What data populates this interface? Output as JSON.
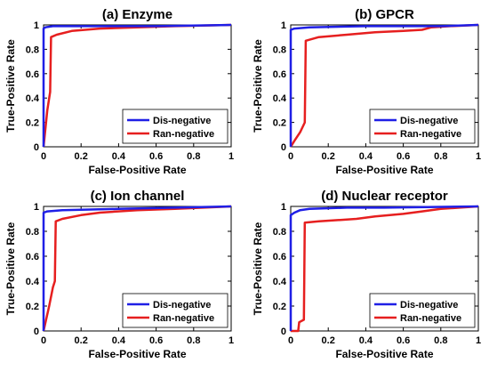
{
  "chart_data": [
    {
      "type": "line",
      "title": "(a) Enzyme",
      "xlabel": "False-Positive Rate",
      "ylabel": "True-Positive Rate",
      "xlim": [
        0,
        1
      ],
      "ylim": [
        0,
        1
      ],
      "xticks": [
        "0",
        "0.2",
        "0.4",
        "0.6",
        "0.8",
        "1"
      ],
      "yticks": [
        "0",
        "0.2",
        "0.4",
        "0.6",
        "0.8",
        "1"
      ],
      "legend_position": "bottom-right",
      "series": [
        {
          "name": "Dis-negative",
          "color": "#1f1fe6",
          "points": [
            [
              0,
              0
            ],
            [
              0,
              0.97
            ],
            [
              0.01,
              0.98
            ],
            [
              0.05,
              0.99
            ],
            [
              0.3,
              0.99
            ],
            [
              0.6,
              0.99
            ],
            [
              1,
              1
            ]
          ]
        },
        {
          "name": "Ran-negative",
          "color": "#e61f1f",
          "points": [
            [
              0,
              0
            ],
            [
              0.02,
              0.3
            ],
            [
              0.035,
              0.45
            ],
            [
              0.04,
              0.9
            ],
            [
              0.07,
              0.92
            ],
            [
              0.15,
              0.95
            ],
            [
              0.3,
              0.97
            ],
            [
              0.5,
              0.98
            ],
            [
              0.7,
              0.99
            ],
            [
              1,
              1
            ]
          ]
        }
      ]
    },
    {
      "type": "line",
      "title": "(b) GPCR",
      "xlabel": "False-Positive Rate",
      "ylabel": "True-Positive Rate",
      "xlim": [
        0,
        1
      ],
      "ylim": [
        0,
        1
      ],
      "xticks": [
        "0",
        "0.2",
        "0.4",
        "0.6",
        "0.8",
        "1"
      ],
      "yticks": [
        "0",
        "0.2",
        "0.4",
        "0.6",
        "0.8",
        "1"
      ],
      "legend_position": "bottom-right",
      "series": [
        {
          "name": "Dis-negative",
          "color": "#1f1fe6",
          "points": [
            [
              0,
              0
            ],
            [
              0,
              0.96
            ],
            [
              0.02,
              0.97
            ],
            [
              0.1,
              0.98
            ],
            [
              0.4,
              0.99
            ],
            [
              0.8,
              0.99
            ],
            [
              1,
              1
            ]
          ]
        },
        {
          "name": "Ran-negative",
          "color": "#e61f1f",
          "points": [
            [
              0,
              0
            ],
            [
              0.02,
              0.05
            ],
            [
              0.05,
              0.12
            ],
            [
              0.075,
              0.2
            ],
            [
              0.08,
              0.87
            ],
            [
              0.15,
              0.9
            ],
            [
              0.3,
              0.92
            ],
            [
              0.45,
              0.94
            ],
            [
              0.6,
              0.95
            ],
            [
              0.7,
              0.96
            ],
            [
              0.75,
              0.98
            ],
            [
              0.85,
              0.99
            ],
            [
              1,
              1
            ]
          ]
        }
      ]
    },
    {
      "type": "line",
      "title": "(c) Ion channel",
      "xlabel": "False-Positive Rate",
      "ylabel": "True-Positive Rate",
      "xlim": [
        0,
        1
      ],
      "ylim": [
        0,
        1
      ],
      "xticks": [
        "0",
        "0.2",
        "0.4",
        "0.6",
        "0.8",
        "1"
      ],
      "yticks": [
        "0",
        "0.2",
        "0.4",
        "0.6",
        "0.8",
        "1"
      ],
      "legend_position": "bottom-right",
      "series": [
        {
          "name": "Dis-negative",
          "color": "#1f1fe6",
          "points": [
            [
              0,
              0
            ],
            [
              0,
              0.95
            ],
            [
              0.02,
              0.96
            ],
            [
              0.1,
              0.97
            ],
            [
              0.4,
              0.98
            ],
            [
              0.7,
              0.99
            ],
            [
              1,
              1
            ]
          ]
        },
        {
          "name": "Ran-negative",
          "color": "#e61f1f",
          "points": [
            [
              0,
              0
            ],
            [
              0.03,
              0.2
            ],
            [
              0.05,
              0.35
            ],
            [
              0.06,
              0.4
            ],
            [
              0.065,
              0.88
            ],
            [
              0.1,
              0.9
            ],
            [
              0.2,
              0.93
            ],
            [
              0.3,
              0.95
            ],
            [
              0.5,
              0.97
            ],
            [
              0.7,
              0.98
            ],
            [
              1,
              1
            ]
          ]
        }
      ]
    },
    {
      "type": "line",
      "title": "(d) Nuclear receptor",
      "xlabel": "False-Positive Rate",
      "ylabel": "True-Positive Rate",
      "xlim": [
        0,
        1
      ],
      "ylim": [
        0,
        1
      ],
      "xticks": [
        "0",
        "0.2",
        "0.4",
        "0.6",
        "0.8",
        "1"
      ],
      "yticks": [
        "0",
        "0.2",
        "0.4",
        "0.6",
        "0.8",
        "1"
      ],
      "legend_position": "bottom-right",
      "series": [
        {
          "name": "Dis-negative",
          "color": "#1f1fe6",
          "points": [
            [
              0,
              0
            ],
            [
              0,
              0.93
            ],
            [
              0.02,
              0.95
            ],
            [
              0.05,
              0.97
            ],
            [
              0.1,
              0.98
            ],
            [
              0.3,
              0.99
            ],
            [
              0.5,
              0.99
            ],
            [
              1,
              1
            ]
          ]
        },
        {
          "name": "Ran-negative",
          "color": "#e61f1f",
          "points": [
            [
              0,
              0
            ],
            [
              0.04,
              0
            ],
            [
              0.045,
              0.07
            ],
            [
              0.07,
              0.09
            ],
            [
              0.075,
              0.87
            ],
            [
              0.15,
              0.88
            ],
            [
              0.25,
              0.89
            ],
            [
              0.35,
              0.9
            ],
            [
              0.45,
              0.92
            ],
            [
              0.6,
              0.94
            ],
            [
              0.7,
              0.96
            ],
            [
              0.8,
              0.98
            ],
            [
              0.9,
              0.99
            ],
            [
              1,
              1
            ]
          ]
        }
      ]
    }
  ]
}
